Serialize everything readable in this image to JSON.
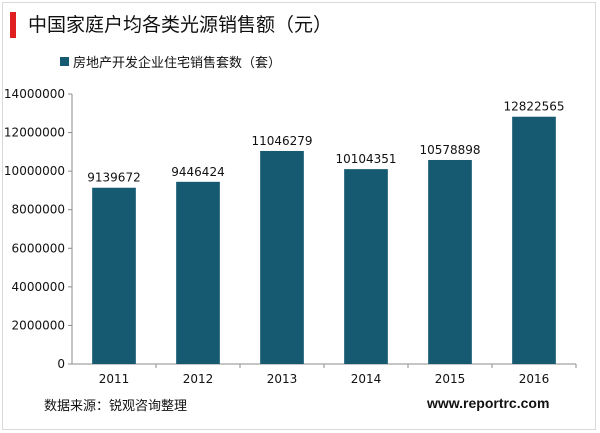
{
  "colors": {
    "accent": "#e02020",
    "bar": "#165a72",
    "axis": "#8c8c8c"
  },
  "header": {
    "title": "中国家庭户均各类光源销售额（元）"
  },
  "footer": {
    "source": "数据来源：锐观咨询整理",
    "url": "www.reportrc.com"
  },
  "chart_data": {
    "type": "bar",
    "title": "中国家庭户均各类光源销售额（元）",
    "categories": [
      "2011",
      "2012",
      "2013",
      "2014",
      "2015",
      "2016"
    ],
    "series": [
      {
        "name": "房地产开发企业住宅销售套数（套）",
        "values": [
          9139672,
          9446424,
          11046279,
          10104351,
          10578898,
          12822565
        ]
      }
    ],
    "value_labels": [
      "9139672",
      "9446424",
      "11046279",
      "10104351",
      "10578898",
      "12822565"
    ],
    "ylim": [
      0,
      14000000
    ],
    "yticks": [
      0,
      2000000,
      4000000,
      6000000,
      8000000,
      10000000,
      12000000,
      14000000
    ],
    "ytick_labels": [
      "0",
      "2000000",
      "4000000",
      "6000000",
      "8000000",
      "10000000",
      "12000000",
      "14000000"
    ],
    "legend_position": "top-left",
    "grid": false,
    "xlabel": "",
    "ylabel": ""
  }
}
